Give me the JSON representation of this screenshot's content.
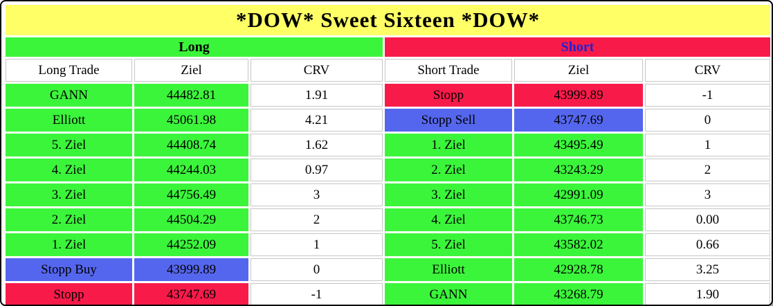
{
  "title": "*DOW* Sweet Sixteen *DOW*",
  "colors": {
    "green": "#3bf53b",
    "red": "#f81b4a",
    "blue": "#5566ee",
    "yellow": "#ffff66",
    "grid": "#c6c6c6",
    "long-label": "#000000",
    "short-label": "#2222cc"
  },
  "sections": {
    "long": {
      "label": "Long",
      "columns": [
        "Long Trade",
        "Ziel",
        "CRV"
      ],
      "rows": [
        {
          "trade": "GANN",
          "ziel": "44482.81",
          "crv": "1.91",
          "style": "green"
        },
        {
          "trade": "Elliott",
          "ziel": "45061.98",
          "crv": "4.21",
          "style": "green"
        },
        {
          "trade": "5. Ziel",
          "ziel": "44408.74",
          "crv": "1.62",
          "style": "green"
        },
        {
          "trade": "4. Ziel",
          "ziel": "44244.03",
          "crv": "0.97",
          "style": "green"
        },
        {
          "trade": "3. Ziel",
          "ziel": "44756.49",
          "crv": "3",
          "style": "green"
        },
        {
          "trade": "2. Ziel",
          "ziel": "44504.29",
          "crv": "2",
          "style": "green"
        },
        {
          "trade": "1. Ziel",
          "ziel": "44252.09",
          "crv": "1",
          "style": "green"
        },
        {
          "trade": "Stopp Buy",
          "ziel": "43999.89",
          "crv": "0",
          "style": "blue"
        },
        {
          "trade": "Stopp",
          "ziel": "43747.69",
          "crv": "-1",
          "style": "red"
        }
      ]
    },
    "short": {
      "label": "Short",
      "columns": [
        "Short Trade",
        "Ziel",
        "CRV"
      ],
      "rows": [
        {
          "trade": "Stopp",
          "ziel": "43999.89",
          "crv": "-1",
          "style": "red"
        },
        {
          "trade": "Stopp Sell",
          "ziel": "43747.69",
          "crv": "0",
          "style": "blue"
        },
        {
          "trade": "1. Ziel",
          "ziel": "43495.49",
          "crv": "1",
          "style": "green"
        },
        {
          "trade": "2. Ziel",
          "ziel": "43243.29",
          "crv": "2",
          "style": "green"
        },
        {
          "trade": "3. Ziel",
          "ziel": "42991.09",
          "crv": "3",
          "style": "green"
        },
        {
          "trade": "4. Ziel",
          "ziel": "43746.73",
          "crv": "0.00",
          "style": "green"
        },
        {
          "trade": "5. Ziel",
          "ziel": "43582.02",
          "crv": "0.66",
          "style": "green"
        },
        {
          "trade": "Elliott",
          "ziel": "42928.78",
          "crv": "3.25",
          "style": "green"
        },
        {
          "trade": "GANN",
          "ziel": "43268.79",
          "crv": "1.90",
          "style": "green"
        }
      ]
    }
  }
}
